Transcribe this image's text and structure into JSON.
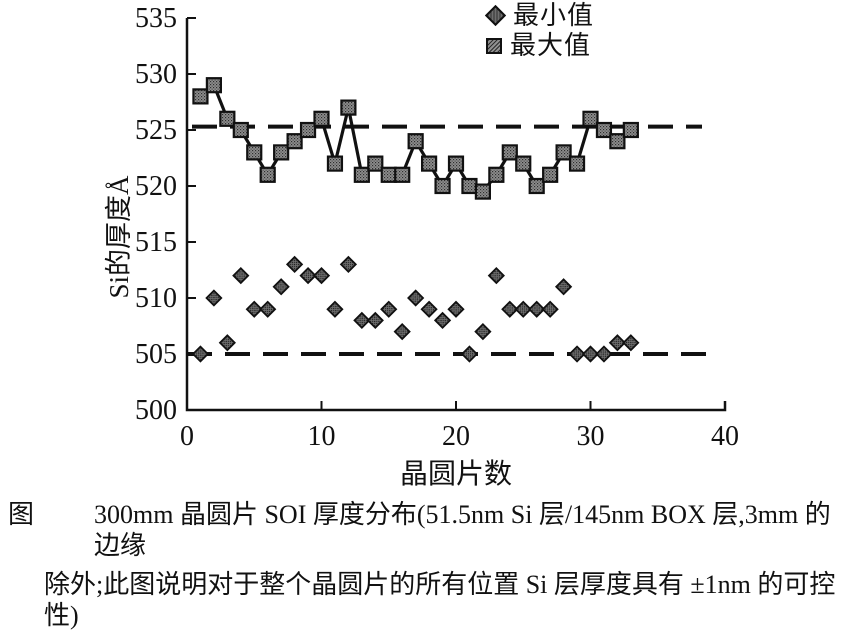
{
  "legend": {
    "items": [
      {
        "label": "最小值",
        "marker": "diamond"
      },
      {
        "label": "最大值",
        "marker": "square"
      }
    ]
  },
  "chart_data": {
    "type": "scatter",
    "title": "",
    "xlabel": "晶圆片数",
    "ylabel": "Si的厚度Å",
    "xlim": [
      0,
      40
    ],
    "ylim": [
      500,
      535
    ],
    "x_ticks": [
      0,
      10,
      20,
      30,
      40
    ],
    "y_ticks": [
      500,
      505,
      510,
      515,
      520,
      525,
      530,
      535
    ],
    "grid": false,
    "legend_position": "top-center",
    "x": [
      1,
      2,
      3,
      4,
      5,
      6,
      7,
      8,
      9,
      10,
      11,
      12,
      13,
      14,
      15,
      16,
      17,
      18,
      19,
      20,
      21,
      22,
      23,
      24,
      25,
      26,
      27,
      28,
      29,
      30,
      31,
      32,
      33
    ],
    "series": [
      {
        "name": "最小值",
        "marker": "diamond",
        "connected": false,
        "values": [
          505,
          510,
          506,
          512,
          509,
          509,
          511,
          513,
          512,
          512,
          509,
          513,
          508,
          508,
          509,
          507,
          510,
          509,
          508,
          509,
          505,
          507,
          512,
          509,
          509,
          509,
          509,
          511,
          505,
          505,
          505,
          506,
          506
        ]
      },
      {
        "name": "最大值",
        "marker": "square",
        "connected": true,
        "values": [
          528,
          529,
          526,
          525,
          523,
          521,
          523,
          524,
          525,
          526,
          522,
          527,
          521,
          522,
          521,
          521,
          524,
          522,
          520,
          522,
          520,
          519.5,
          521,
          523,
          522,
          520,
          521,
          523,
          522,
          526,
          525,
          524,
          525
        ]
      }
    ],
    "reference_lines": [
      {
        "value": 525.3,
        "style": "dashed"
      },
      {
        "value": 505,
        "style": "dashed"
      }
    ]
  },
  "caption": {
    "label": "图",
    "line1": "300mm 晶圆片 SOI 厚度分布(51.5nm Si 层/145nm BOX 层,3mm 的边缘",
    "line2": "除外;此图说明对于整个晶圆片的所有位置 Si 层厚度具有 ±1nm 的可控性)"
  },
  "colors": {
    "ink": "#111111",
    "background": "#ffffff",
    "square_fill": "#8f8f8f",
    "diamond_fill": "#6e6e6e"
  }
}
